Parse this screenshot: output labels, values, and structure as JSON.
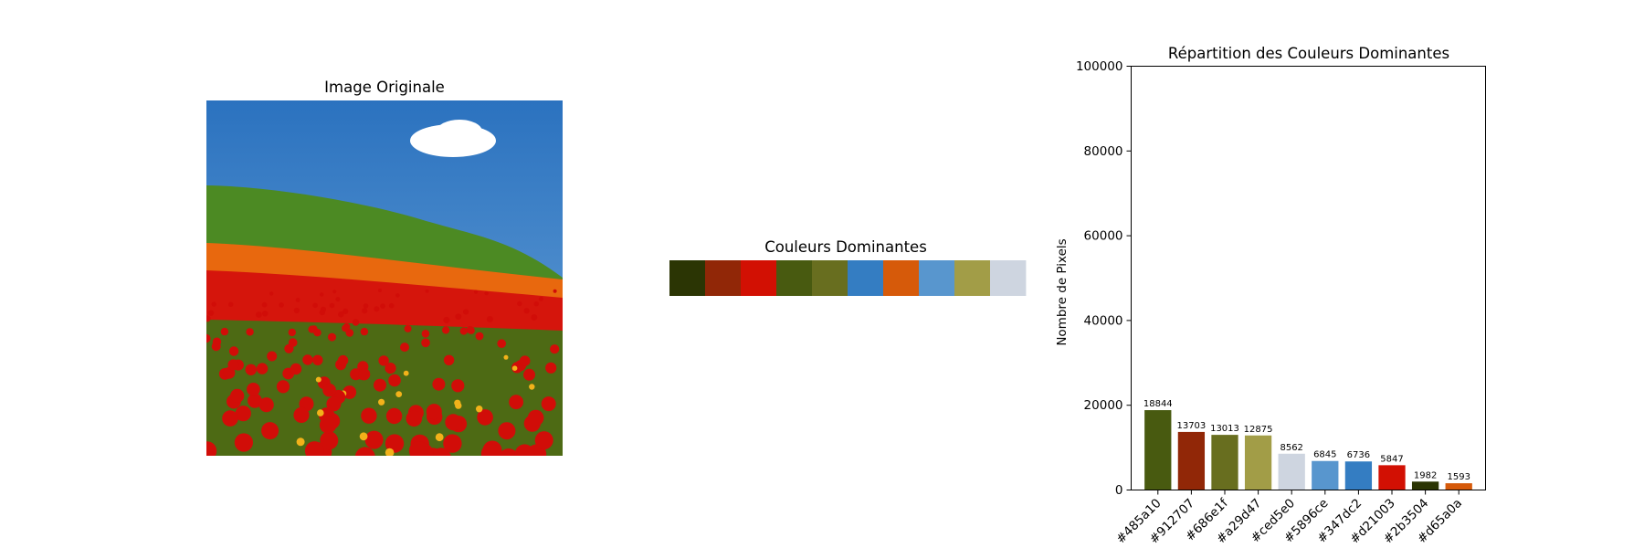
{
  "panels": {
    "image": {
      "title": "Image Originale",
      "scene": {
        "sky_top": "#2b72bf",
        "sky_bottom": "#6aa3d8",
        "cloud": "#ffffff",
        "hill": "#4c8a23",
        "hill_dark": "#3f7a1c",
        "orange_band": "#e8680e",
        "red_band": "#d5150c",
        "meadow": "#4d6a14",
        "poppy": "#d10d08",
        "yellow_flower": "#f2b21a"
      }
    },
    "palette": {
      "title": "Couleurs Dominantes",
      "swatches": [
        "#2b3504",
        "#912707",
        "#d21003",
        "#485a10",
        "#686e1f",
        "#347dc2",
        "#d65a0a",
        "#5896ce",
        "#a29d47",
        "#ced5e0"
      ]
    }
  },
  "chart_data": {
    "type": "bar",
    "title": "Répartition des Couleurs Dominantes",
    "xlabel": "",
    "ylabel": "Nombre de Pixels",
    "ylim": [
      0,
      100000
    ],
    "yticks": [
      "0",
      "20000",
      "40000",
      "60000",
      "80000",
      "100000"
    ],
    "categories": [
      "#485a10",
      "#912707",
      "#686e1f",
      "#a29d47",
      "#ced5e0",
      "#5896ce",
      "#347dc2",
      "#d21003",
      "#2b3504",
      "#d65a0a"
    ],
    "values": [
      18844,
      13703,
      13013,
      12875,
      8562,
      6845,
      6736,
      5847,
      1982,
      1593
    ],
    "value_labels": [
      "18844",
      "13703",
      "13013",
      "12875",
      "8562",
      "6845",
      "6736",
      "5847",
      "1982",
      "1593"
    ],
    "colors": [
      "#485a10",
      "#912707",
      "#686e1f",
      "#a29d47",
      "#ced5e0",
      "#5896ce",
      "#347dc2",
      "#d21003",
      "#2b3504",
      "#d65a0a"
    ],
    "grid": false,
    "legend": "none"
  }
}
